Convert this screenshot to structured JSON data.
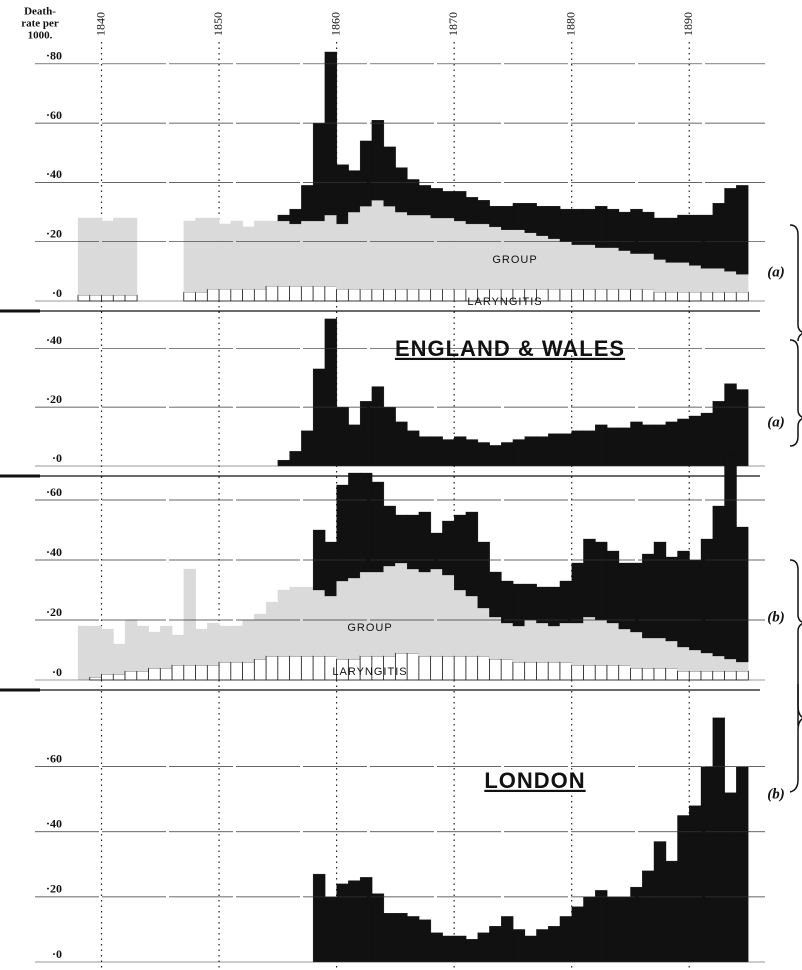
{
  "chart_data": [
    {
      "type": "bar",
      "stacked": true,
      "y_label": [
        "Death-",
        "rate per",
        "1000."
      ],
      "group_label": "(a)",
      "xlim": [
        1838,
        1895
      ],
      "xticks": [
        1840,
        1850,
        1860,
        1870,
        1880,
        1890
      ],
      "ylim": [
        0,
        0.85
      ],
      "yticks": [
        {
          "value": 0,
          "label": "·0"
        },
        {
          "value": 0.2,
          "label": "·20"
        },
        {
          "value": 0.4,
          "label": "·40"
        },
        {
          "value": 0.6,
          "label": "·60"
        },
        {
          "value": 0.8,
          "label": "·80"
        }
      ],
      "grid": true,
      "x": [
        1838,
        1839,
        1840,
        1841,
        1842,
        1843,
        1844,
        1845,
        1846,
        1847,
        1848,
        1849,
        1850,
        1851,
        1852,
        1853,
        1854,
        1855,
        1856,
        1857,
        1858,
        1859,
        1860,
        1861,
        1862,
        1863,
        1864,
        1865,
        1866,
        1867,
        1868,
        1869,
        1870,
        1871,
        1872,
        1873,
        1874,
        1875,
        1876,
        1877,
        1878,
        1879,
        1880,
        1881,
        1882,
        1883,
        1884,
        1885,
        1886,
        1887,
        1888,
        1889,
        1890,
        1891,
        1892,
        1893,
        1894
      ],
      "series": [
        {
          "name": "LARYNGITIS",
          "color": "#ffffff",
          "values": [
            0.02,
            0.02,
            0.02,
            0.02,
            0.02,
            null,
            null,
            null,
            null,
            0.03,
            0.03,
            0.04,
            0.04,
            0.04,
            0.04,
            0.04,
            0.05,
            0.05,
            0.05,
            0.05,
            0.05,
            0.05,
            0.04,
            0.04,
            0.04,
            0.04,
            0.04,
            0.04,
            0.04,
            0.04,
            0.04,
            0.04,
            0.04,
            0.04,
            0.04,
            0.04,
            0.04,
            0.04,
            0.04,
            0.04,
            0.04,
            0.04,
            0.04,
            0.04,
            0.04,
            0.04,
            0.04,
            0.04,
            0.04,
            0.03,
            0.03,
            0.03,
            0.03,
            0.03,
            0.03,
            0.03,
            0.03
          ]
        },
        {
          "name": "GROUP",
          "color": "#dadada",
          "values": [
            0.26,
            0.26,
            0.25,
            0.26,
            0.26,
            null,
            null,
            null,
            null,
            0.24,
            0.25,
            0.24,
            0.22,
            0.23,
            0.21,
            0.23,
            0.22,
            0.22,
            0.21,
            0.22,
            0.22,
            0.24,
            0.22,
            0.26,
            0.28,
            0.3,
            0.28,
            0.26,
            0.25,
            0.25,
            0.24,
            0.24,
            0.23,
            0.22,
            0.22,
            0.21,
            0.2,
            0.2,
            0.19,
            0.18,
            0.17,
            0.16,
            0.15,
            0.15,
            0.14,
            0.14,
            0.13,
            0.12,
            0.12,
            0.11,
            0.1,
            0.1,
            0.09,
            0.08,
            0.08,
            0.07,
            0.06
          ]
        },
        {
          "color": "#111111",
          "values": [
            null,
            null,
            null,
            null,
            null,
            null,
            null,
            null,
            null,
            null,
            null,
            null,
            null,
            null,
            null,
            null,
            null,
            0.02,
            0.05,
            0.12,
            0.33,
            0.55,
            0.2,
            0.14,
            0.22,
            0.27,
            0.2,
            0.15,
            0.12,
            0.1,
            0.1,
            0.09,
            0.1,
            0.09,
            0.08,
            0.07,
            0.08,
            0.09,
            0.1,
            0.1,
            0.11,
            0.11,
            0.12,
            0.12,
            0.14,
            0.13,
            0.13,
            0.15,
            0.14,
            0.14,
            0.15,
            0.16,
            0.17,
            0.18,
            0.22,
            0.28,
            0.3
          ]
        }
      ]
    },
    {
      "type": "bar",
      "stacked": true,
      "title": "ENGLAND & WALES",
      "group_label": "(a)",
      "xlim": [
        1838,
        1895
      ],
      "ylim": [
        0,
        0.52
      ],
      "yticks": [
        {
          "value": 0,
          "label": "·0"
        },
        {
          "value": 0.2,
          "label": "·20"
        },
        {
          "value": 0.4,
          "label": "·40"
        }
      ],
      "grid": true,
      "x": [
        1838,
        1839,
        1840,
        1841,
        1842,
        1843,
        1844,
        1845,
        1846,
        1847,
        1848,
        1849,
        1850,
        1851,
        1852,
        1853,
        1854,
        1855,
        1856,
        1857,
        1858,
        1859,
        1860,
        1861,
        1862,
        1863,
        1864,
        1865,
        1866,
        1867,
        1868,
        1869,
        1870,
        1871,
        1872,
        1873,
        1874,
        1875,
        1876,
        1877,
        1878,
        1879,
        1880,
        1881,
        1882,
        1883,
        1884,
        1885,
        1886,
        1887,
        1888,
        1889,
        1890,
        1891,
        1892,
        1893,
        1894
      ],
      "series": [
        {
          "color": "#111111",
          "values": [
            null,
            null,
            null,
            null,
            null,
            null,
            null,
            null,
            null,
            null,
            null,
            null,
            null,
            null,
            null,
            null,
            null,
            0.02,
            0.05,
            0.12,
            0.33,
            0.5,
            0.2,
            0.14,
            0.22,
            0.27,
            0.2,
            0.15,
            0.12,
            0.1,
            0.1,
            0.09,
            0.1,
            0.09,
            0.08,
            0.07,
            0.08,
            0.09,
            0.1,
            0.1,
            0.11,
            0.11,
            0.12,
            0.12,
            0.14,
            0.13,
            0.13,
            0.15,
            0.14,
            0.14,
            0.15,
            0.16,
            0.17,
            0.18,
            0.22,
            0.28,
            0.26
          ]
        }
      ]
    },
    {
      "type": "bar",
      "stacked": true,
      "group_label": "(b)",
      "xlim": [
        1838,
        1895
      ],
      "ylim": [
        0,
        0.75
      ],
      "yticks": [
        {
          "value": 0,
          "label": "·0"
        },
        {
          "value": 0.2,
          "label": "·20"
        },
        {
          "value": 0.4,
          "label": "·40"
        },
        {
          "value": 0.6,
          "label": "·60"
        }
      ],
      "grid": true,
      "x": [
        1838,
        1839,
        1840,
        1841,
        1842,
        1843,
        1844,
        1845,
        1846,
        1847,
        1848,
        1849,
        1850,
        1851,
        1852,
        1853,
        1854,
        1855,
        1856,
        1857,
        1858,
        1859,
        1860,
        1861,
        1862,
        1863,
        1864,
        1865,
        1866,
        1867,
        1868,
        1869,
        1870,
        1871,
        1872,
        1873,
        1874,
        1875,
        1876,
        1877,
        1878,
        1879,
        1880,
        1881,
        1882,
        1883,
        1884,
        1885,
        1886,
        1887,
        1888,
        1889,
        1890,
        1891,
        1892,
        1893,
        1894
      ],
      "series": [
        {
          "name": "LARYNGITIS",
          "color": "#ffffff",
          "values": [
            0.0,
            0.01,
            0.02,
            0.02,
            0.03,
            0.03,
            0.04,
            0.04,
            0.05,
            0.05,
            0.05,
            0.05,
            0.06,
            0.06,
            0.06,
            0.07,
            0.08,
            0.08,
            0.08,
            0.08,
            0.08,
            0.08,
            0.07,
            0.07,
            0.08,
            0.08,
            0.08,
            0.09,
            0.09,
            0.08,
            0.08,
            0.08,
            0.08,
            0.08,
            0.08,
            0.07,
            0.07,
            0.06,
            0.06,
            0.06,
            0.06,
            0.06,
            0.05,
            0.05,
            0.05,
            0.05,
            0.05,
            0.04,
            0.04,
            0.04,
            0.04,
            0.03,
            0.03,
            0.03,
            0.03,
            0.03,
            0.03
          ]
        },
        {
          "name": "GROUP",
          "color": "#dadada",
          "values": [
            0.18,
            0.17,
            0.15,
            0.1,
            0.17,
            0.15,
            0.12,
            0.14,
            0.1,
            0.32,
            0.12,
            0.14,
            0.12,
            0.12,
            0.14,
            0.15,
            0.18,
            0.22,
            0.23,
            0.23,
            0.22,
            0.2,
            0.26,
            0.27,
            0.28,
            0.28,
            0.3,
            0.3,
            0.28,
            0.28,
            0.29,
            0.27,
            0.22,
            0.2,
            0.16,
            0.14,
            0.12,
            0.12,
            0.14,
            0.13,
            0.12,
            0.13,
            0.14,
            0.16,
            0.15,
            0.14,
            0.12,
            0.12,
            0.1,
            0.1,
            0.09,
            0.08,
            0.07,
            0.06,
            0.05,
            0.04,
            0.03
          ]
        },
        {
          "color": "#111111",
          "values": [
            null,
            null,
            null,
            null,
            null,
            null,
            null,
            null,
            null,
            null,
            null,
            null,
            null,
            null,
            null,
            null,
            null,
            null,
            null,
            null,
            0.2,
            0.18,
            0.32,
            0.35,
            0.33,
            0.3,
            0.2,
            0.16,
            0.18,
            0.2,
            0.12,
            0.18,
            0.25,
            0.28,
            0.22,
            0.15,
            0.14,
            0.14,
            0.12,
            0.12,
            0.13,
            0.14,
            0.2,
            0.26,
            0.26,
            0.24,
            0.22,
            0.23,
            0.28,
            0.32,
            0.28,
            0.32,
            0.3,
            0.38,
            0.5,
            0.68,
            0.45
          ]
        }
      ]
    },
    {
      "type": "bar",
      "stacked": true,
      "title": "LONDON",
      "group_label": "(b)",
      "xlim": [
        1838,
        1895
      ],
      "ylim": [
        0,
        0.78
      ],
      "yticks": [
        {
          "value": 0,
          "label": "·0"
        },
        {
          "value": 0.2,
          "label": "·20"
        },
        {
          "value": 0.4,
          "label": "·40"
        },
        {
          "value": 0.6,
          "label": "·60"
        }
      ],
      "grid": true,
      "x": [
        1838,
        1839,
        1840,
        1841,
        1842,
        1843,
        1844,
        1845,
        1846,
        1847,
        1848,
        1849,
        1850,
        1851,
        1852,
        1853,
        1854,
        1855,
        1856,
        1857,
        1858,
        1859,
        1860,
        1861,
        1862,
        1863,
        1864,
        1865,
        1866,
        1867,
        1868,
        1869,
        1870,
        1871,
        1872,
        1873,
        1874,
        1875,
        1876,
        1877,
        1878,
        1879,
        1880,
        1881,
        1882,
        1883,
        1884,
        1885,
        1886,
        1887,
        1888,
        1889,
        1890,
        1891,
        1892,
        1893,
        1894
      ],
      "series": [
        {
          "color": "#111111",
          "values": [
            null,
            null,
            null,
            null,
            null,
            null,
            null,
            null,
            null,
            null,
            null,
            null,
            null,
            null,
            null,
            null,
            null,
            null,
            null,
            null,
            0.27,
            0.2,
            0.24,
            0.25,
            0.26,
            0.21,
            0.15,
            0.15,
            0.14,
            0.13,
            0.09,
            0.08,
            0.08,
            0.07,
            0.09,
            0.11,
            0.14,
            0.1,
            0.08,
            0.1,
            0.11,
            0.14,
            0.17,
            0.2,
            0.22,
            0.2,
            0.2,
            0.23,
            0.28,
            0.37,
            0.31,
            0.45,
            0.48,
            0.6,
            0.75,
            0.52,
            0.6
          ]
        }
      ]
    }
  ]
}
